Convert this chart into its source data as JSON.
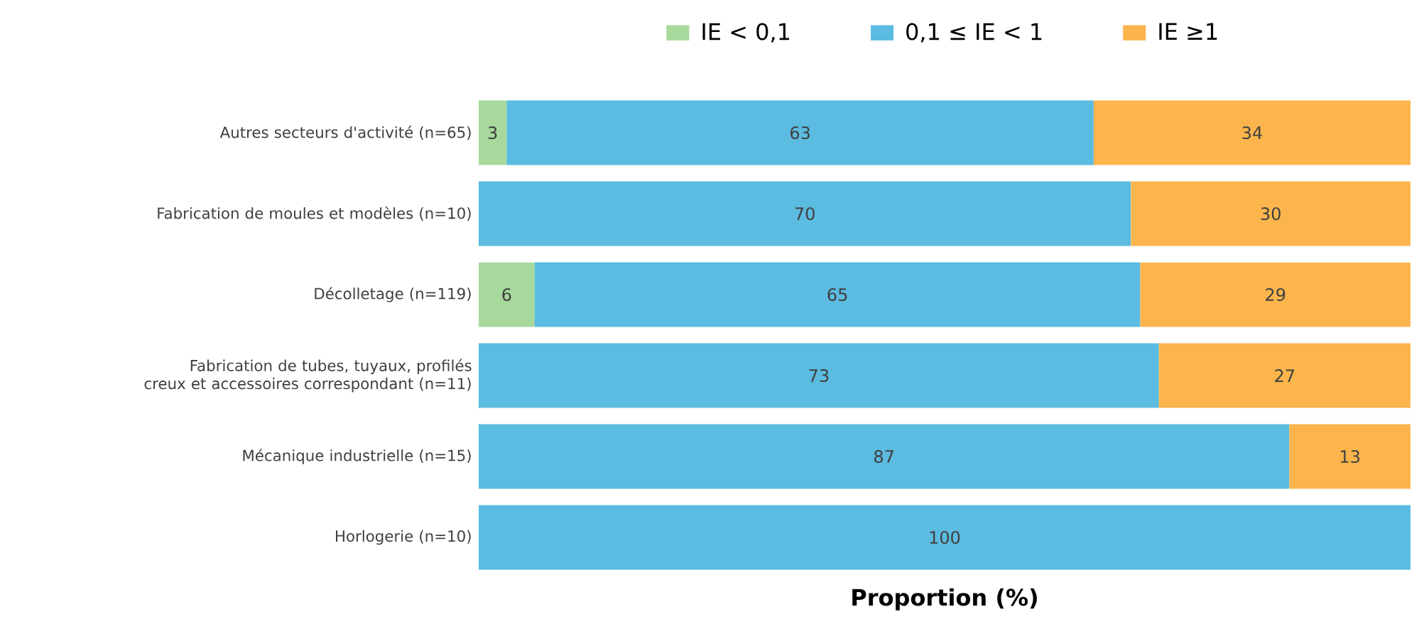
{
  "chart_data": {
    "type": "bar",
    "orientation": "horizontal",
    "stacked": true,
    "data_labels": true,
    "legend": "top",
    "xlabel": "Proportion (%)",
    "xlim": [
      0,
      100
    ],
    "categories": [
      "Autres secteurs d'activité (n=65)",
      "Fabrication de moules et modèles (n=10)",
      "Décolletage (n=119)",
      "Fabrication de tubes, tuyaux, profilés creux et accessoires correspondant (n=11)",
      "Mécanique industrielle (n=15)",
      "Horlogerie (n=10)"
    ],
    "series": [
      {
        "name": "IE < 0,1",
        "color": "#a6d99b",
        "values": [
          3,
          null,
          6,
          null,
          null,
          null
        ]
      },
      {
        "name": "0,1 ≤ IE < 1",
        "color": "#5bbbe0",
        "values": [
          63,
          70,
          65,
          73,
          87,
          100
        ]
      },
      {
        "name": "IE ≥1",
        "color": "#fbb54c",
        "values": [
          34,
          30,
          29,
          27,
          13,
          null
        ]
      }
    ]
  }
}
